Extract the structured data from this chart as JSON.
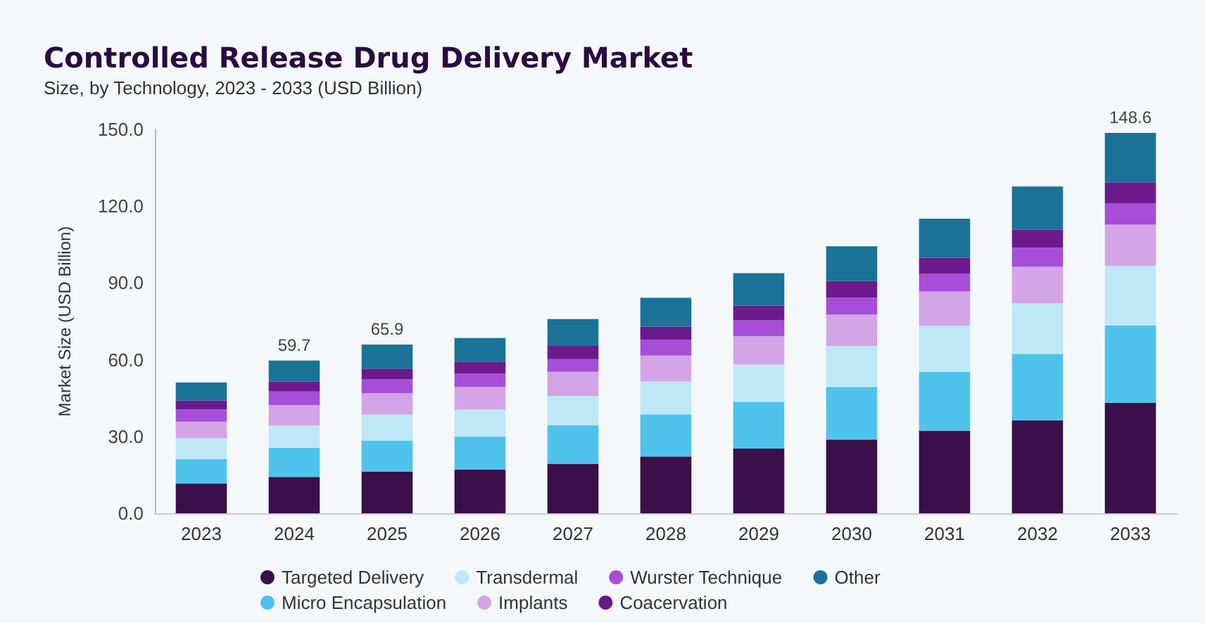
{
  "chart_data": {
    "type": "bar",
    "title": "Controlled Release Drug Delivery Market",
    "subtitle": "Size, by Technology, 2023 - 2033 (USD Billion)",
    "ylabel": "Market Size (USD Billion)",
    "categories": [
      "2023",
      "2024",
      "2025",
      "2026",
      "2027",
      "2028",
      "2029",
      "2030",
      "2031",
      "2032",
      "2033"
    ],
    "stacked": true,
    "ylim": [
      0,
      150
    ],
    "yticks": [
      {
        "value": 0,
        "label": "0.0"
      },
      {
        "value": 30,
        "label": "30.0"
      },
      {
        "value": 60,
        "label": "60.0"
      },
      {
        "value": 90,
        "label": "90.0"
      },
      {
        "value": 120,
        "label": "120.0"
      },
      {
        "value": 150,
        "label": "150.0"
      }
    ],
    "grid": false,
    "legend": "bottom",
    "totals": [
      null,
      "59.7",
      "65.9",
      null,
      null,
      null,
      null,
      null,
      null,
      null,
      "148.6"
    ],
    "series": [
      {
        "name": "Targeted Delivery",
        "color": "#3a0f4a",
        "values": [
          11.7,
          14.2,
          16.2,
          17.1,
          19.4,
          22.2,
          25.3,
          28.8,
          32.3,
          36.3,
          43.1
        ]
      },
      {
        "name": "Micro Encapsulation",
        "color": "#4fc3ec",
        "values": [
          9.6,
          11.4,
          12.2,
          12.9,
          15.0,
          16.5,
          18.3,
          20.6,
          23.0,
          26.0,
          30.3
        ]
      },
      {
        "name": "Transdermal",
        "color": "#bfe8f7",
        "values": [
          8.0,
          8.7,
          10.2,
          10.5,
          11.5,
          12.8,
          14.5,
          16.0,
          18.0,
          19.7,
          23.2
        ]
      },
      {
        "name": "Implants",
        "color": "#d4a5e6",
        "values": [
          6.5,
          8.0,
          8.3,
          8.9,
          9.4,
          10.1,
          11.1,
          12.2,
          13.4,
          14.3,
          16.2
        ]
      },
      {
        "name": "Wurster Technique",
        "color": "#a64ed8",
        "values": [
          4.8,
          5.3,
          5.6,
          5.2,
          4.9,
          6.1,
          6.2,
          6.6,
          7.0,
          7.5,
          8.2
        ]
      },
      {
        "name": "Coacervation",
        "color": "#6b1a8c",
        "values": [
          3.5,
          3.9,
          4.0,
          4.7,
          5.2,
          5.2,
          5.7,
          6.5,
          6.1,
          7.0,
          8.3
        ]
      },
      {
        "name": "Other",
        "color": "#1a7396",
        "values": [
          7.0,
          8.2,
          9.4,
          9.2,
          10.5,
          11.3,
          12.7,
          13.6,
          15.3,
          16.9,
          19.3
        ]
      }
    ]
  }
}
